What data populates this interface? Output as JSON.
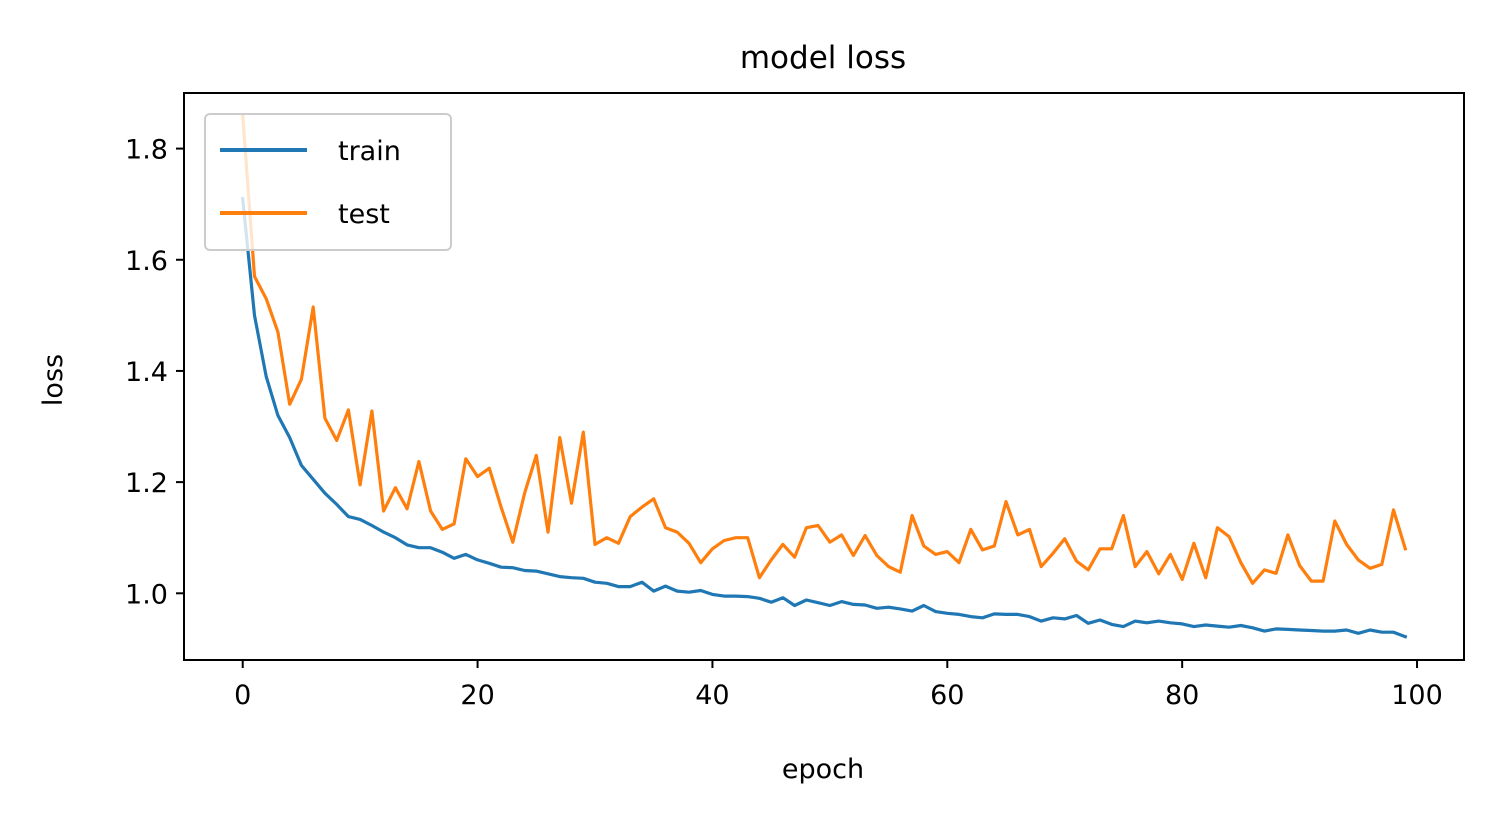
{
  "chart_data": {
    "type": "line",
    "title": "model loss",
    "xlabel": "epoch",
    "ylabel": "loss",
    "xlim": [
      -5,
      104
    ],
    "ylim": [
      0.88,
      1.9
    ],
    "xticks": [
      0,
      20,
      40,
      60,
      80,
      100
    ],
    "yticks": [
      1.0,
      1.2,
      1.4,
      1.6,
      1.8
    ],
    "xtick_labels": [
      "0",
      "20",
      "40",
      "60",
      "80",
      "100"
    ],
    "ytick_labels": [
      "1.0",
      "1.2",
      "1.4",
      "1.6",
      "1.8"
    ],
    "grid": false,
    "legend": {
      "placement": "upper-left",
      "entries": [
        "train",
        "test"
      ]
    },
    "series": [
      {
        "name": "train",
        "color": "#1f77b4",
        "x": [
          0,
          1,
          2,
          3,
          4,
          5,
          6,
          7,
          8,
          9,
          10,
          11,
          12,
          13,
          14,
          15,
          16,
          17,
          18,
          19,
          20,
          21,
          22,
          23,
          24,
          25,
          26,
          27,
          28,
          29,
          30,
          31,
          32,
          33,
          34,
          35,
          36,
          37,
          38,
          39,
          40,
          41,
          42,
          43,
          44,
          45,
          46,
          47,
          48,
          49,
          50,
          51,
          52,
          53,
          54,
          55,
          56,
          57,
          58,
          59,
          60,
          61,
          62,
          63,
          64,
          65,
          66,
          67,
          68,
          69,
          70,
          71,
          72,
          73,
          74,
          75,
          76,
          77,
          78,
          79,
          80,
          81,
          82,
          83,
          84,
          85,
          86,
          87,
          88,
          89,
          90,
          91,
          92,
          93,
          94,
          95,
          96,
          97,
          98,
          99
        ],
        "y": [
          1.71,
          1.5,
          1.39,
          1.32,
          1.28,
          1.23,
          1.205,
          1.18,
          1.16,
          1.138,
          1.133,
          1.122,
          1.11,
          1.1,
          1.087,
          1.082,
          1.082,
          1.074,
          1.063,
          1.07,
          1.06,
          1.054,
          1.047,
          1.046,
          1.041,
          1.04,
          1.035,
          1.03,
          1.028,
          1.027,
          1.02,
          1.018,
          1.012,
          1.012,
          1.02,
          1.004,
          1.013,
          1.004,
          1.002,
          1.005,
          0.998,
          0.995,
          0.995,
          0.994,
          0.991,
          0.984,
          0.992,
          0.978,
          0.988,
          0.983,
          0.978,
          0.985,
          0.98,
          0.979,
          0.973,
          0.975,
          0.972,
          0.968,
          0.978,
          0.967,
          0.964,
          0.962,
          0.958,
          0.956,
          0.963,
          0.962,
          0.962,
          0.958,
          0.95,
          0.956,
          0.954,
          0.96,
          0.946,
          0.952,
          0.944,
          0.94,
          0.95,
          0.947,
          0.95,
          0.947,
          0.945,
          0.94,
          0.943,
          0.941,
          0.939,
          0.942,
          0.938,
          0.932,
          0.936,
          0.935,
          0.934,
          0.933,
          0.932,
          0.932,
          0.934,
          0.928,
          0.934,
          0.93,
          0.93,
          0.922
        ]
      },
      {
        "name": "test",
        "color": "#ff7f0e",
        "x": [
          0,
          1,
          2,
          3,
          4,
          5,
          6,
          7,
          8,
          9,
          10,
          11,
          12,
          13,
          14,
          15,
          16,
          17,
          18,
          19,
          20,
          21,
          22,
          23,
          24,
          25,
          26,
          27,
          28,
          29,
          30,
          31,
          32,
          33,
          34,
          35,
          36,
          37,
          38,
          39,
          40,
          41,
          42,
          43,
          44,
          45,
          46,
          47,
          48,
          49,
          50,
          51,
          52,
          53,
          54,
          55,
          56,
          57,
          58,
          59,
          60,
          61,
          62,
          63,
          64,
          65,
          66,
          67,
          68,
          69,
          70,
          71,
          72,
          73,
          74,
          75,
          76,
          77,
          78,
          79,
          80,
          81,
          82,
          83,
          84,
          85,
          86,
          87,
          88,
          89,
          90,
          91,
          92,
          93,
          94,
          95,
          96,
          97,
          98,
          99
        ],
        "y": [
          1.86,
          1.57,
          1.53,
          1.47,
          1.34,
          1.385,
          1.515,
          1.315,
          1.275,
          1.33,
          1.195,
          1.328,
          1.148,
          1.19,
          1.152,
          1.237,
          1.148,
          1.115,
          1.125,
          1.242,
          1.21,
          1.225,
          1.155,
          1.092,
          1.18,
          1.248,
          1.11,
          1.28,
          1.162,
          1.29,
          1.088,
          1.1,
          1.09,
          1.138,
          1.155,
          1.17,
          1.118,
          1.11,
          1.09,
          1.055,
          1.08,
          1.095,
          1.1,
          1.1,
          1.028,
          1.06,
          1.088,
          1.065,
          1.118,
          1.122,
          1.092,
          1.105,
          1.068,
          1.104,
          1.068,
          1.048,
          1.038,
          1.14,
          1.085,
          1.07,
          1.075,
          1.055,
          1.115,
          1.078,
          1.085,
          1.165,
          1.105,
          1.115,
          1.048,
          1.072,
          1.098,
          1.058,
          1.042,
          1.08,
          1.08,
          1.14,
          1.048,
          1.075,
          1.035,
          1.07,
          1.025,
          1.09,
          1.028,
          1.118,
          1.102,
          1.055,
          1.018,
          1.042,
          1.036,
          1.105,
          1.05,
          1.022,
          1.022,
          1.13,
          1.088,
          1.06,
          1.045,
          1.052,
          1.15,
          1.08
        ]
      }
    ]
  }
}
